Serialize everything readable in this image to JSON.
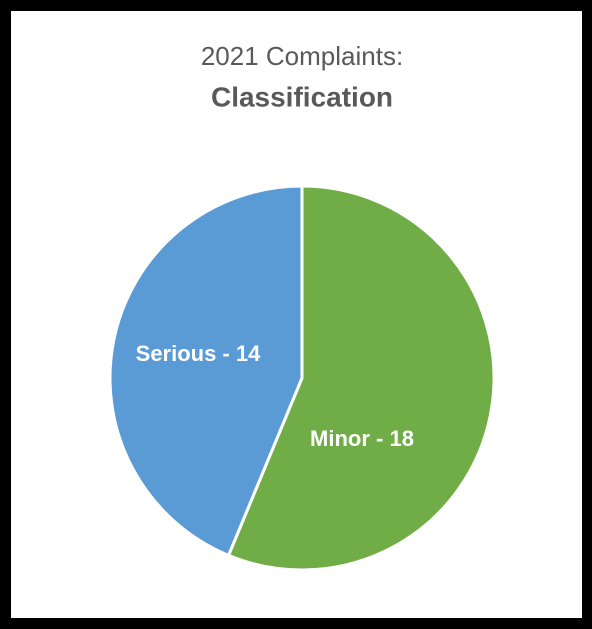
{
  "chart_data": {
    "type": "pie",
    "title": "2021 Complaints:",
    "subtitle": "Classification",
    "values": [
      18,
      14
    ],
    "value_labels": [
      "Minor - 18",
      "Serious - 14"
    ],
    "colors": [
      "#70ad47",
      "#5b9bd5"
    ]
  }
}
